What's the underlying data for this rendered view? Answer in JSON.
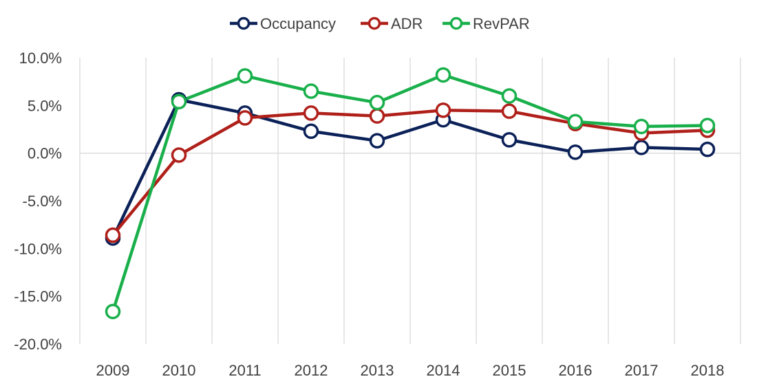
{
  "chart_data": {
    "type": "line",
    "title": "",
    "xlabel": "",
    "ylabel": "",
    "categories": [
      "2009",
      "2010",
      "2011",
      "2012",
      "2013",
      "2014",
      "2015",
      "2016",
      "2017",
      "2018"
    ],
    "ylim": [
      -20.0,
      10.0
    ],
    "yticks": [
      10.0,
      5.0,
      0.0,
      -5.0,
      -10.0,
      -15.0,
      -20.0
    ],
    "ytick_labels": [
      "10.0%",
      "5.0%",
      "0.0%",
      "-5.0%",
      "-10.0%",
      "-15.0%",
      "-20.0%"
    ],
    "grid": "vertical",
    "legend_position": "top",
    "series": [
      {
        "name": "Occupancy",
        "color": "#0b2158",
        "values": [
          -8.9,
          5.6,
          4.2,
          2.3,
          1.3,
          3.5,
          1.4,
          0.1,
          0.6,
          0.4
        ]
      },
      {
        "name": "ADR",
        "color": "#b0201a",
        "values": [
          -8.6,
          -0.2,
          3.7,
          4.2,
          3.9,
          4.5,
          4.4,
          3.1,
          2.1,
          2.4
        ]
      },
      {
        "name": "RevPAR",
        "color": "#19b04b",
        "values": [
          -16.6,
          5.4,
          8.1,
          6.5,
          5.3,
          8.2,
          6.0,
          3.3,
          2.8,
          2.9
        ]
      }
    ]
  }
}
